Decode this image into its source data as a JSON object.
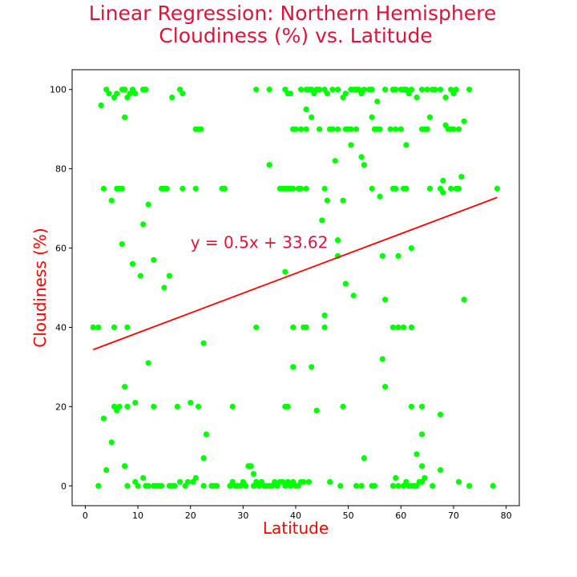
{
  "chart_data": {
    "type": "scatter",
    "title": [
      "Linear Regression: Northern Hemisphere",
      "Cloudiness (%) vs. Latitude"
    ],
    "xlabel": "Latitude",
    "ylabel": "Cloudiness (%)",
    "xlim": [
      -2.5,
      82.5
    ],
    "ylim": [
      -5,
      105
    ],
    "xticks": [
      0,
      10,
      20,
      30,
      40,
      50,
      60,
      70,
      80
    ],
    "yticks": [
      0,
      20,
      40,
      60,
      80,
      100
    ],
    "grid": false,
    "legend": "none",
    "point_color": "#00ff00",
    "line_color": "#ff0000",
    "annotation": {
      "text": "y = 0.5x + 33.62",
      "x": 20,
      "y": 60
    },
    "regression": {
      "slope": 0.5,
      "intercept": 33.62,
      "x": [
        1.5,
        78.3
      ]
    },
    "points": [
      [
        4,
        100
      ],
      [
        4.5,
        99
      ],
      [
        5.5,
        98
      ],
      [
        6,
        99
      ],
      [
        7,
        100
      ],
      [
        7.5,
        100
      ],
      [
        8,
        98
      ],
      [
        8.5,
        99
      ],
      [
        9,
        100
      ],
      [
        9.5,
        99
      ],
      [
        11,
        100
      ],
      [
        11.5,
        100
      ],
      [
        3,
        96
      ],
      [
        7.5,
        93
      ],
      [
        16.5,
        98
      ],
      [
        18,
        100
      ],
      [
        18.5,
        99
      ],
      [
        21,
        90
      ],
      [
        21.5,
        90
      ],
      [
        22,
        90
      ],
      [
        3.5,
        75
      ],
      [
        6,
        75
      ],
      [
        6.5,
        75
      ],
      [
        7,
        75
      ],
      [
        14.5,
        75
      ],
      [
        15,
        75
      ],
      [
        15.5,
        75
      ],
      [
        18.5,
        75
      ],
      [
        21,
        75
      ],
      [
        26,
        75
      ],
      [
        26.5,
        75
      ],
      [
        5,
        72
      ],
      [
        12,
        71
      ],
      [
        11,
        66
      ],
      [
        7,
        61
      ],
      [
        13,
        57
      ],
      [
        9,
        56
      ],
      [
        10.5,
        53
      ],
      [
        16,
        53
      ],
      [
        15,
        50
      ],
      [
        1.5,
        40
      ],
      [
        2.5,
        40
      ],
      [
        5.5,
        40
      ],
      [
        8,
        40
      ],
      [
        22.5,
        36
      ],
      [
        12,
        31
      ],
      [
        7.5,
        25
      ],
      [
        3.5,
        17
      ],
      [
        5,
        11
      ],
      [
        5.5,
        20
      ],
      [
        6,
        19
      ],
      [
        6.5,
        20
      ],
      [
        8,
        20
      ],
      [
        9.5,
        21
      ],
      [
        13,
        20
      ],
      [
        17.5,
        20
      ],
      [
        20,
        21
      ],
      [
        21.5,
        20
      ],
      [
        22.5,
        7
      ],
      [
        23,
        13
      ],
      [
        28,
        20
      ],
      [
        2.5,
        0
      ],
      [
        4,
        4
      ],
      [
        7.5,
        5
      ],
      [
        8,
        0
      ],
      [
        9.5,
        1
      ],
      [
        10,
        0
      ],
      [
        11,
        2
      ],
      [
        11.5,
        0
      ],
      [
        12,
        0
      ],
      [
        13,
        0
      ],
      [
        13.5,
        0
      ],
      [
        14,
        0
      ],
      [
        14.5,
        0
      ],
      [
        16,
        0
      ],
      [
        16.5,
        0
      ],
      [
        17,
        0
      ],
      [
        18,
        1
      ],
      [
        19,
        0
      ],
      [
        19.5,
        1
      ],
      [
        20.5,
        1
      ],
      [
        21,
        2
      ],
      [
        22.5,
        0
      ],
      [
        24,
        0
      ],
      [
        24.5,
        0
      ],
      [
        25,
        0
      ],
      [
        27.5,
        0
      ],
      [
        28,
        1
      ],
      [
        28.5,
        0
      ],
      [
        29,
        0
      ],
      [
        29.5,
        0
      ],
      [
        30,
        1
      ],
      [
        30.5,
        0
      ],
      [
        31,
        5
      ],
      [
        31.5,
        5
      ],
      [
        32,
        0
      ],
      [
        32.5,
        1
      ],
      [
        33,
        0
      ],
      [
        33.5,
        1
      ],
      [
        34,
        0
      ],
      [
        34.5,
        0
      ],
      [
        35,
        0
      ],
      [
        35.5,
        0
      ],
      [
        36,
        1
      ],
      [
        36.5,
        0
      ],
      [
        37,
        1
      ],
      [
        37.5,
        1
      ],
      [
        38,
        0
      ],
      [
        38.5,
        1
      ],
      [
        39,
        0
      ],
      [
        39.5,
        1
      ],
      [
        40,
        0
      ],
      [
        40.5,
        0
      ],
      [
        41,
        1
      ],
      [
        41.5,
        1
      ],
      [
        42.5,
        1
      ],
      [
        32,
        3
      ],
      [
        32.5,
        100
      ],
      [
        35,
        100
      ],
      [
        38,
        100
      ],
      [
        38.5,
        99
      ],
      [
        39,
        99
      ],
      [
        41,
        100
      ],
      [
        42,
        100
      ],
      [
        42.5,
        100
      ],
      [
        43,
        100
      ],
      [
        43.5,
        99
      ],
      [
        44,
        100
      ],
      [
        44.5,
        100
      ],
      [
        45.5,
        100
      ],
      [
        46,
        99
      ],
      [
        47,
        100
      ],
      [
        48,
        100
      ],
      [
        49,
        98
      ],
      [
        49.5,
        99
      ],
      [
        50.5,
        100
      ],
      [
        51,
        100
      ],
      [
        51.5,
        100
      ],
      [
        52,
        100
      ],
      [
        52.5,
        99
      ],
      [
        53,
        100
      ],
      [
        54,
        100
      ],
      [
        54.5,
        100
      ],
      [
        55.5,
        97
      ],
      [
        57,
        100
      ],
      [
        58.5,
        100
      ],
      [
        59,
        100
      ],
      [
        60,
        100
      ],
      [
        60.5,
        100
      ],
      [
        61,
        100
      ],
      [
        61.5,
        99
      ],
      [
        62,
        100
      ],
      [
        63,
        98
      ],
      [
        64,
        100
      ],
      [
        65,
        100
      ],
      [
        66,
        100
      ],
      [
        66.5,
        100
      ],
      [
        67.5,
        100
      ],
      [
        68.5,
        98
      ],
      [
        69.5,
        100
      ],
      [
        70,
        99
      ],
      [
        70.5,
        100
      ],
      [
        73,
        100
      ],
      [
        42,
        95
      ],
      [
        43,
        93
      ],
      [
        39.5,
        90
      ],
      [
        40,
        90
      ],
      [
        41,
        90
      ],
      [
        42,
        90
      ],
      [
        44.5,
        90
      ],
      [
        46.5,
        90
      ],
      [
        47,
        90
      ],
      [
        48,
        90
      ],
      [
        49.5,
        90
      ],
      [
        50,
        90
      ],
      [
        50.5,
        90
      ],
      [
        51.5,
        90
      ],
      [
        55,
        90
      ],
      [
        55.5,
        90
      ],
      [
        56,
        90
      ],
      [
        58,
        90
      ],
      [
        59,
        90
      ],
      [
        60,
        90
      ],
      [
        64,
        90
      ],
      [
        64.5,
        90
      ],
      [
        65,
        90
      ],
      [
        54.5,
        93
      ],
      [
        65.5,
        93
      ],
      [
        68.5,
        91
      ],
      [
        69,
        90
      ],
      [
        69.5,
        90
      ],
      [
        70,
        90
      ],
      [
        71,
        90
      ],
      [
        72,
        92
      ],
      [
        61,
        86
      ],
      [
        50.5,
        86
      ],
      [
        52.5,
        83
      ],
      [
        53,
        81
      ],
      [
        47.5,
        82
      ],
      [
        35,
        81
      ],
      [
        37,
        75
      ],
      [
        37.5,
        75
      ],
      [
        38,
        75
      ],
      [
        38.5,
        75
      ],
      [
        39,
        75
      ],
      [
        39.5,
        75
      ],
      [
        40.5,
        75
      ],
      [
        41,
        75
      ],
      [
        42,
        75
      ],
      [
        45.5,
        75
      ],
      [
        54.5,
        75
      ],
      [
        58.5,
        75
      ],
      [
        59,
        75
      ],
      [
        60.5,
        75
      ],
      [
        61,
        75
      ],
      [
        65.5,
        75
      ],
      [
        67.5,
        75
      ],
      [
        69.5,
        75
      ],
      [
        70.5,
        75
      ],
      [
        71,
        75
      ],
      [
        78.3,
        75
      ],
      [
        68,
        77
      ],
      [
        71.5,
        78
      ],
      [
        68,
        74
      ],
      [
        56,
        73
      ],
      [
        46,
        72
      ],
      [
        49,
        72
      ],
      [
        45,
        67
      ],
      [
        48,
        62
      ],
      [
        62,
        60
      ],
      [
        48,
        58
      ],
      [
        56.5,
        58
      ],
      [
        59.5,
        58
      ],
      [
        38,
        54
      ],
      [
        49.5,
        51
      ],
      [
        51,
        48
      ],
      [
        57,
        47
      ],
      [
        72,
        47
      ],
      [
        32.5,
        40
      ],
      [
        39.5,
        40
      ],
      [
        41.5,
        40
      ],
      [
        42,
        40
      ],
      [
        45.5,
        40
      ],
      [
        45.5,
        43
      ],
      [
        58.5,
        40
      ],
      [
        59.5,
        40
      ],
      [
        60.5,
        40
      ],
      [
        62,
        40
      ],
      [
        39.5,
        30
      ],
      [
        43,
        30
      ],
      [
        56.5,
        32
      ],
      [
        57,
        25
      ],
      [
        38,
        20
      ],
      [
        38.5,
        20
      ],
      [
        44,
        19
      ],
      [
        49,
        20
      ],
      [
        62,
        20
      ],
      [
        64,
        20
      ],
      [
        67.5,
        18
      ],
      [
        64,
        13
      ],
      [
        53,
        7
      ],
      [
        63,
        8
      ],
      [
        64,
        5
      ],
      [
        67.5,
        4
      ],
      [
        71,
        1
      ],
      [
        46.5,
        1
      ],
      [
        48.5,
        0
      ],
      [
        51.5,
        0
      ],
      [
        52.5,
        0
      ],
      [
        54.5,
        0
      ],
      [
        55,
        0
      ],
      [
        58.5,
        0
      ],
      [
        59,
        2
      ],
      [
        59.5,
        0
      ],
      [
        60.5,
        0
      ],
      [
        61,
        1
      ],
      [
        61.5,
        0
      ],
      [
        62,
        0
      ],
      [
        62.5,
        0
      ],
      [
        63,
        0
      ],
      [
        63.5,
        1
      ],
      [
        64,
        1
      ],
      [
        64.5,
        2
      ],
      [
        66,
        0
      ],
      [
        73,
        0
      ],
      [
        77.5,
        0
      ]
    ]
  }
}
